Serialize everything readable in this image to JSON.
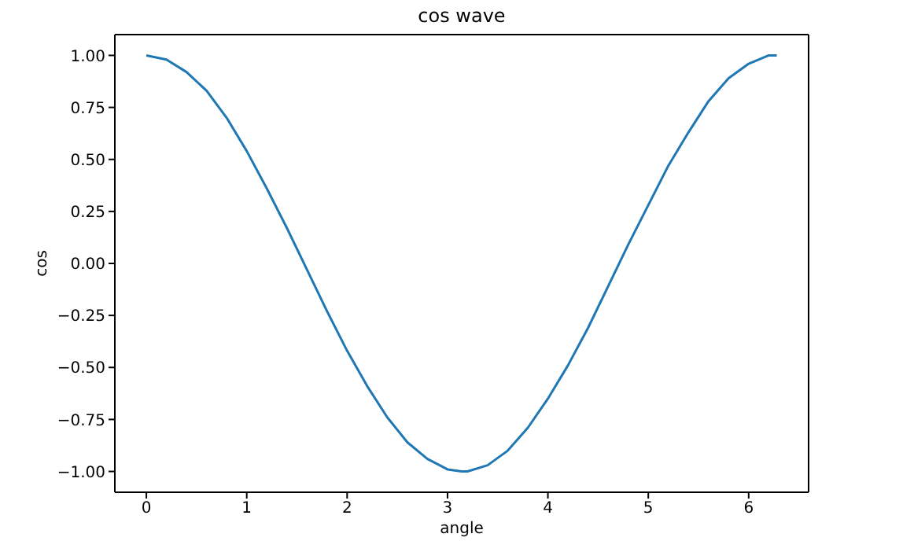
{
  "chart_data": {
    "type": "line",
    "title": "cos wave",
    "xlabel": "angle",
    "ylabel": "cos",
    "marker": "none",
    "x": [
      0,
      0.2,
      0.4,
      0.6,
      0.8,
      1.0,
      1.2,
      1.4,
      1.6,
      1.8,
      2.0,
      2.2,
      2.4,
      2.6,
      2.8,
      3.0,
      3.14,
      3.2,
      3.4,
      3.6,
      3.8,
      4.0,
      4.2,
      4.4,
      4.6,
      4.8,
      5.0,
      5.2,
      5.4,
      5.6,
      5.8,
      6.0,
      6.2,
      6.28
    ],
    "series": [
      {
        "color": "#1f77b4",
        "values": [
          1.0,
          0.98,
          0.92,
          0.83,
          0.7,
          0.54,
          0.36,
          0.17,
          -0.03,
          -0.23,
          -0.42,
          -0.59,
          -0.74,
          -0.86,
          -0.94,
          -0.99,
          -1.0,
          -1.0,
          -0.97,
          -0.9,
          -0.79,
          -0.65,
          -0.49,
          -0.31,
          -0.11,
          0.09,
          0.28,
          0.47,
          0.63,
          0.78,
          0.89,
          0.96,
          1.0,
          1.0
        ]
      }
    ],
    "xlim": [
      -0.314,
      6.597
    ],
    "ylim": [
      -1.1,
      1.1
    ],
    "xticks": [
      0,
      1,
      2,
      3,
      4,
      5,
      6
    ],
    "yticks": [
      {
        "value": -1,
        "label": "−1.00"
      },
      {
        "value": -0.75,
        "label": "−0.75"
      },
      {
        "value": -0.5,
        "label": "−0.50"
      },
      {
        "value": -0.25,
        "label": "−0.25"
      },
      {
        "value": 0,
        "label": "0.00"
      },
      {
        "value": 0.25,
        "label": "0.25"
      },
      {
        "value": 0.5,
        "label": "0.50"
      },
      {
        "value": 0.75,
        "label": "0.75"
      },
      {
        "value": 1,
        "label": "1.00"
      }
    ]
  }
}
